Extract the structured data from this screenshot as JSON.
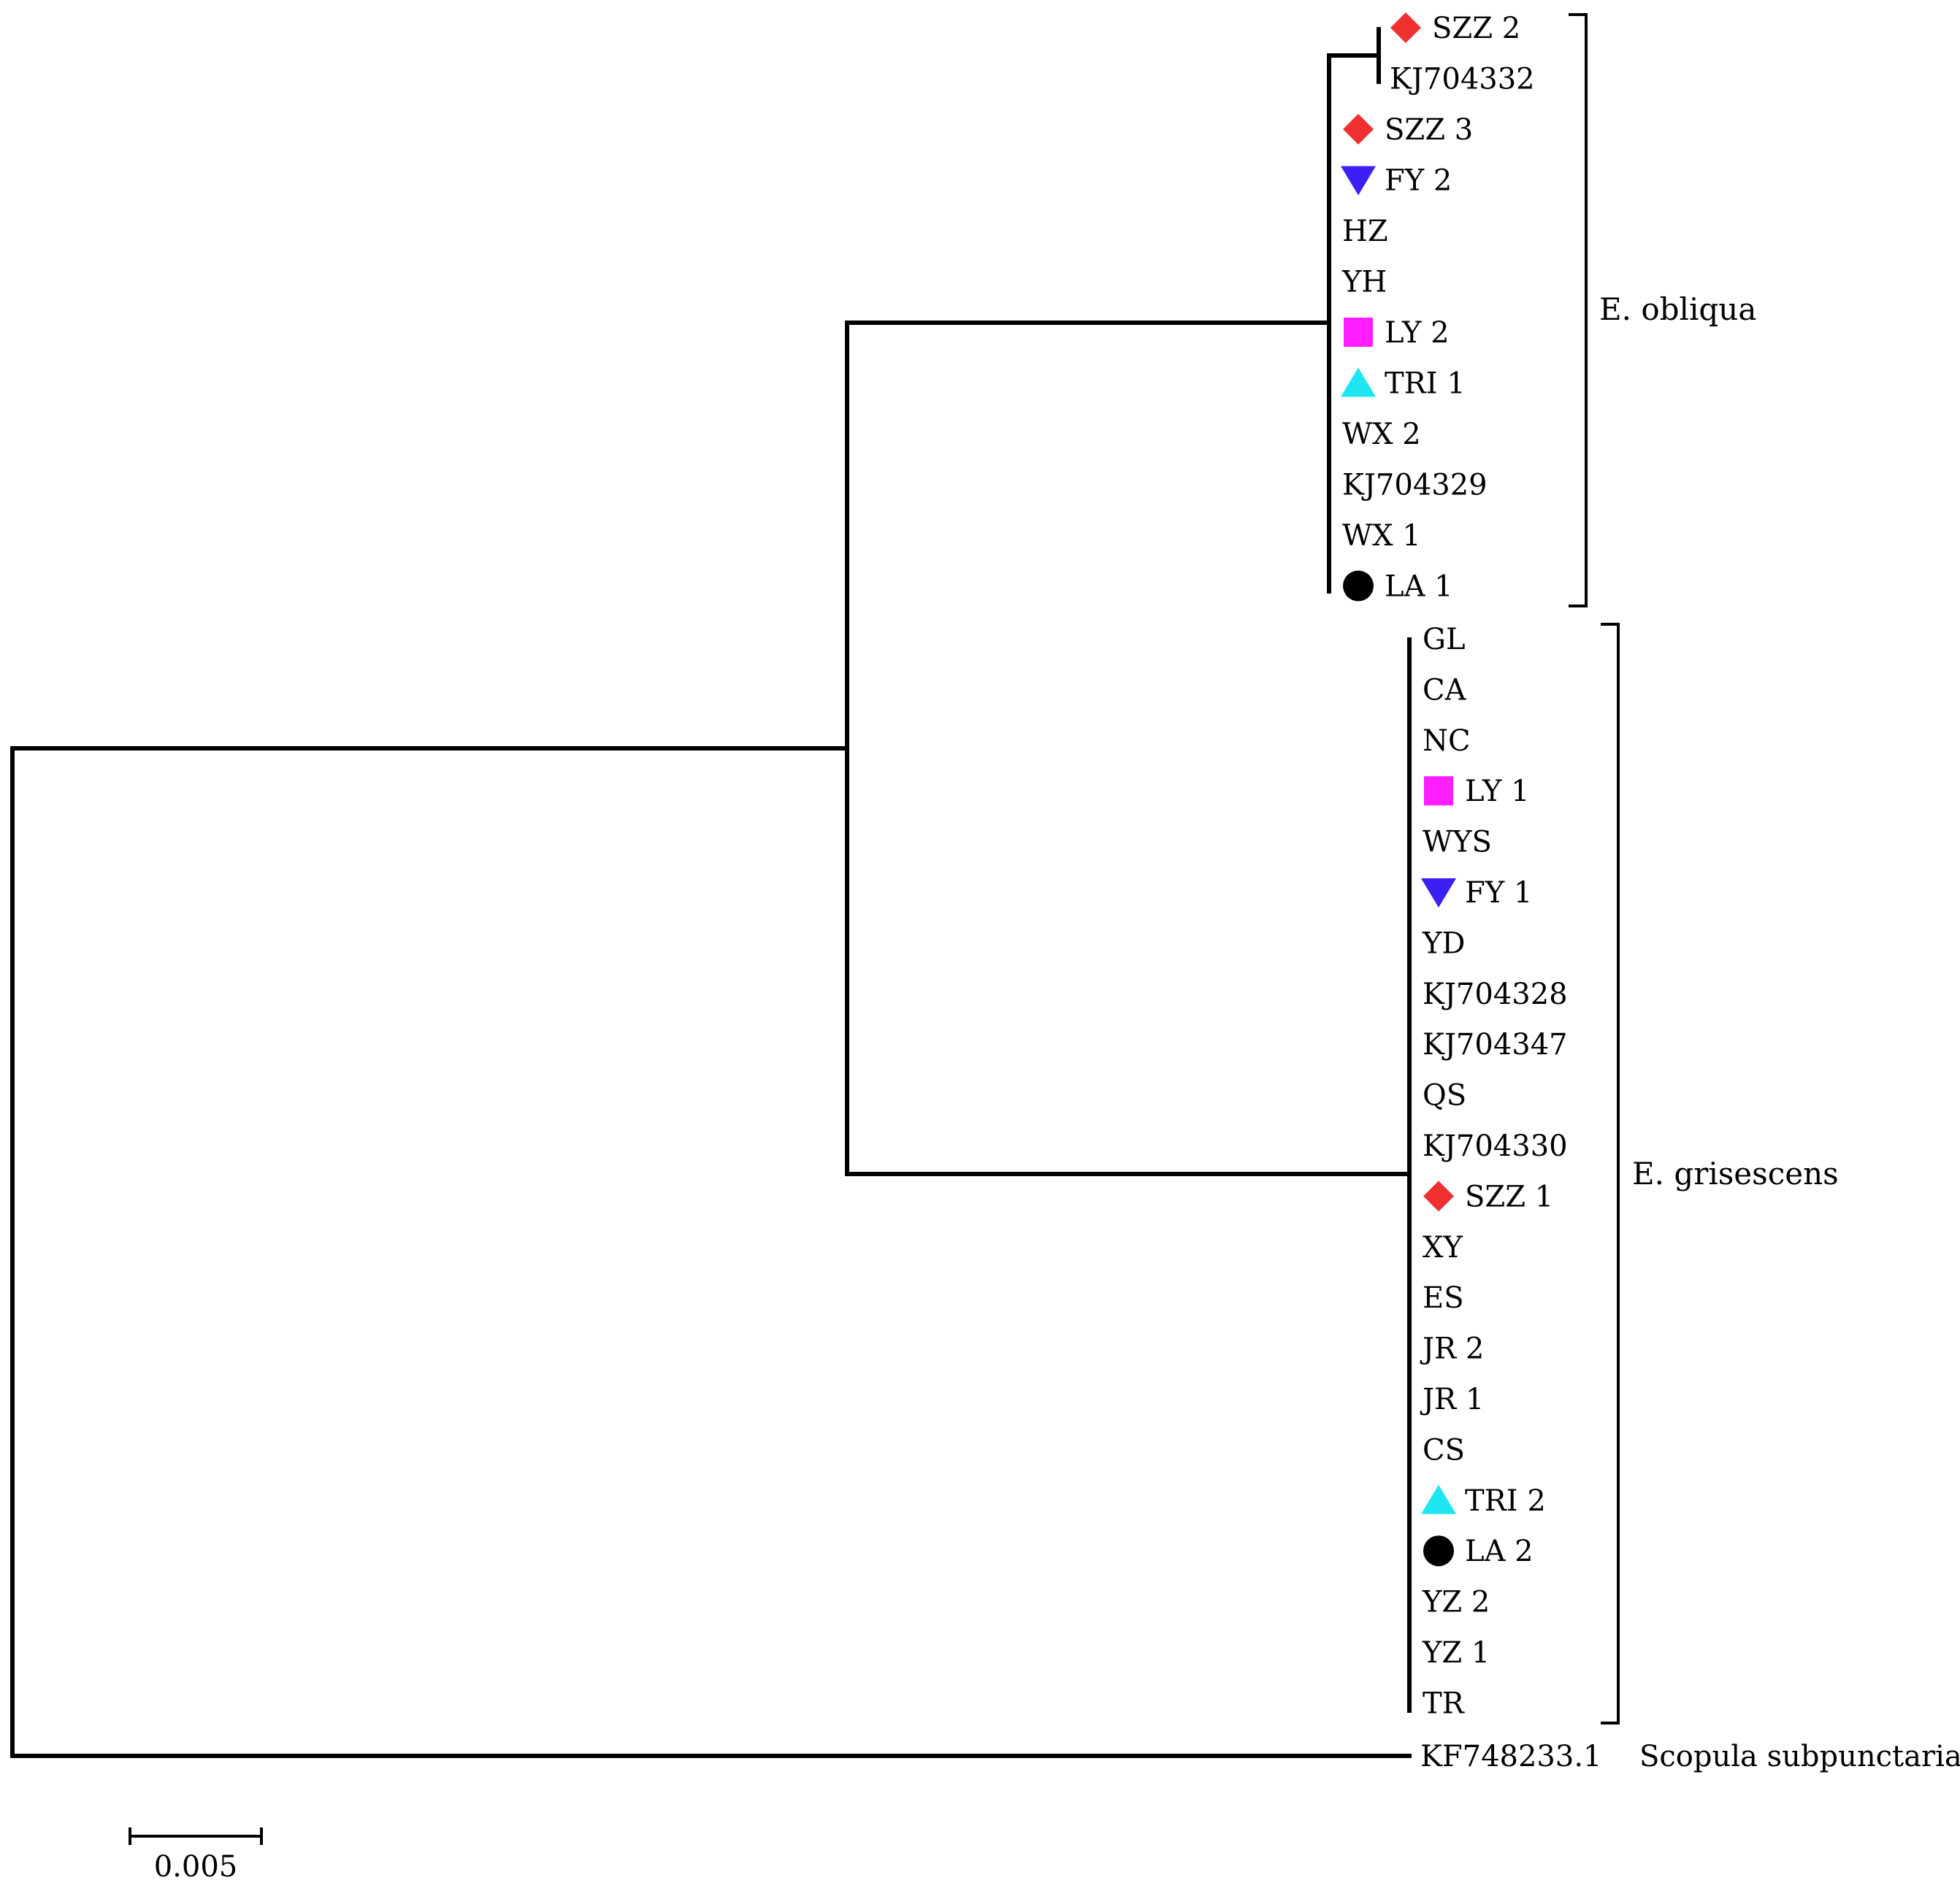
{
  "tree": {
    "clades": {
      "obliqua": {
        "label": "E. obliqua",
        "color": "#ff2020",
        "leaves": [
          {
            "name": "SZZ 2",
            "marker": "diamond",
            "color": "#f03030"
          },
          {
            "name": "KJ704332",
            "marker": "none",
            "color": ""
          },
          {
            "name": "SZZ 3",
            "marker": "diamond",
            "color": "#f03030"
          },
          {
            "name": "FY 2",
            "marker": "triangle-down",
            "color": "#3b1ff5"
          },
          {
            "name": "HZ",
            "marker": "none",
            "color": ""
          },
          {
            "name": "YH",
            "marker": "none",
            "color": ""
          },
          {
            "name": "LY 2",
            "marker": "square",
            "color": "#ff1eff"
          },
          {
            "name": "TRI 1",
            "marker": "triangle-up",
            "color": "#1ee6f0"
          },
          {
            "name": "WX 2",
            "marker": "none",
            "color": ""
          },
          {
            "name": "KJ704329",
            "marker": "none",
            "color": ""
          },
          {
            "name": "WX 1",
            "marker": "none",
            "color": ""
          },
          {
            "name": "LA 1",
            "marker": "circle",
            "color": "#000000"
          }
        ]
      },
      "grisescens": {
        "label": "E. grisescens",
        "color": "#3a1ff0",
        "leaves": [
          {
            "name": "GL",
            "marker": "none",
            "color": ""
          },
          {
            "name": "CA",
            "marker": "none",
            "color": ""
          },
          {
            "name": "NC",
            "marker": "none",
            "color": ""
          },
          {
            "name": "LY 1",
            "marker": "square",
            "color": "#ff1eff"
          },
          {
            "name": "WYS",
            "marker": "none",
            "color": ""
          },
          {
            "name": "FY 1",
            "marker": "triangle-down",
            "color": "#3b1ff5"
          },
          {
            "name": "YD",
            "marker": "none",
            "color": ""
          },
          {
            "name": "KJ704328",
            "marker": "none",
            "color": ""
          },
          {
            "name": "KJ704347",
            "marker": "none",
            "color": ""
          },
          {
            "name": "QS",
            "marker": "none",
            "color": ""
          },
          {
            "name": "KJ704330",
            "marker": "none",
            "color": ""
          },
          {
            "name": "SZZ 1",
            "marker": "diamond",
            "color": "#f03030"
          },
          {
            "name": "XY",
            "marker": "none",
            "color": ""
          },
          {
            "name": "ES",
            "marker": "none",
            "color": ""
          },
          {
            "name": "JR 2",
            "marker": "none",
            "color": ""
          },
          {
            "name": "JR 1",
            "marker": "none",
            "color": ""
          },
          {
            "name": "CS",
            "marker": "none",
            "color": ""
          },
          {
            "name": "TRI 2",
            "marker": "triangle-up",
            "color": "#1ee6f0"
          },
          {
            "name": "LA 2",
            "marker": "circle",
            "color": "#000000"
          },
          {
            "name": "YZ 2",
            "marker": "none",
            "color": ""
          },
          {
            "name": "YZ 1",
            "marker": "none",
            "color": ""
          },
          {
            "name": "TR",
            "marker": "none",
            "color": ""
          }
        ]
      }
    },
    "outgroup": {
      "name": "KF748233.1",
      "species": "Scopula subpunctaria"
    },
    "scale_bar": {
      "value": 0.005,
      "label": "0.005"
    }
  }
}
